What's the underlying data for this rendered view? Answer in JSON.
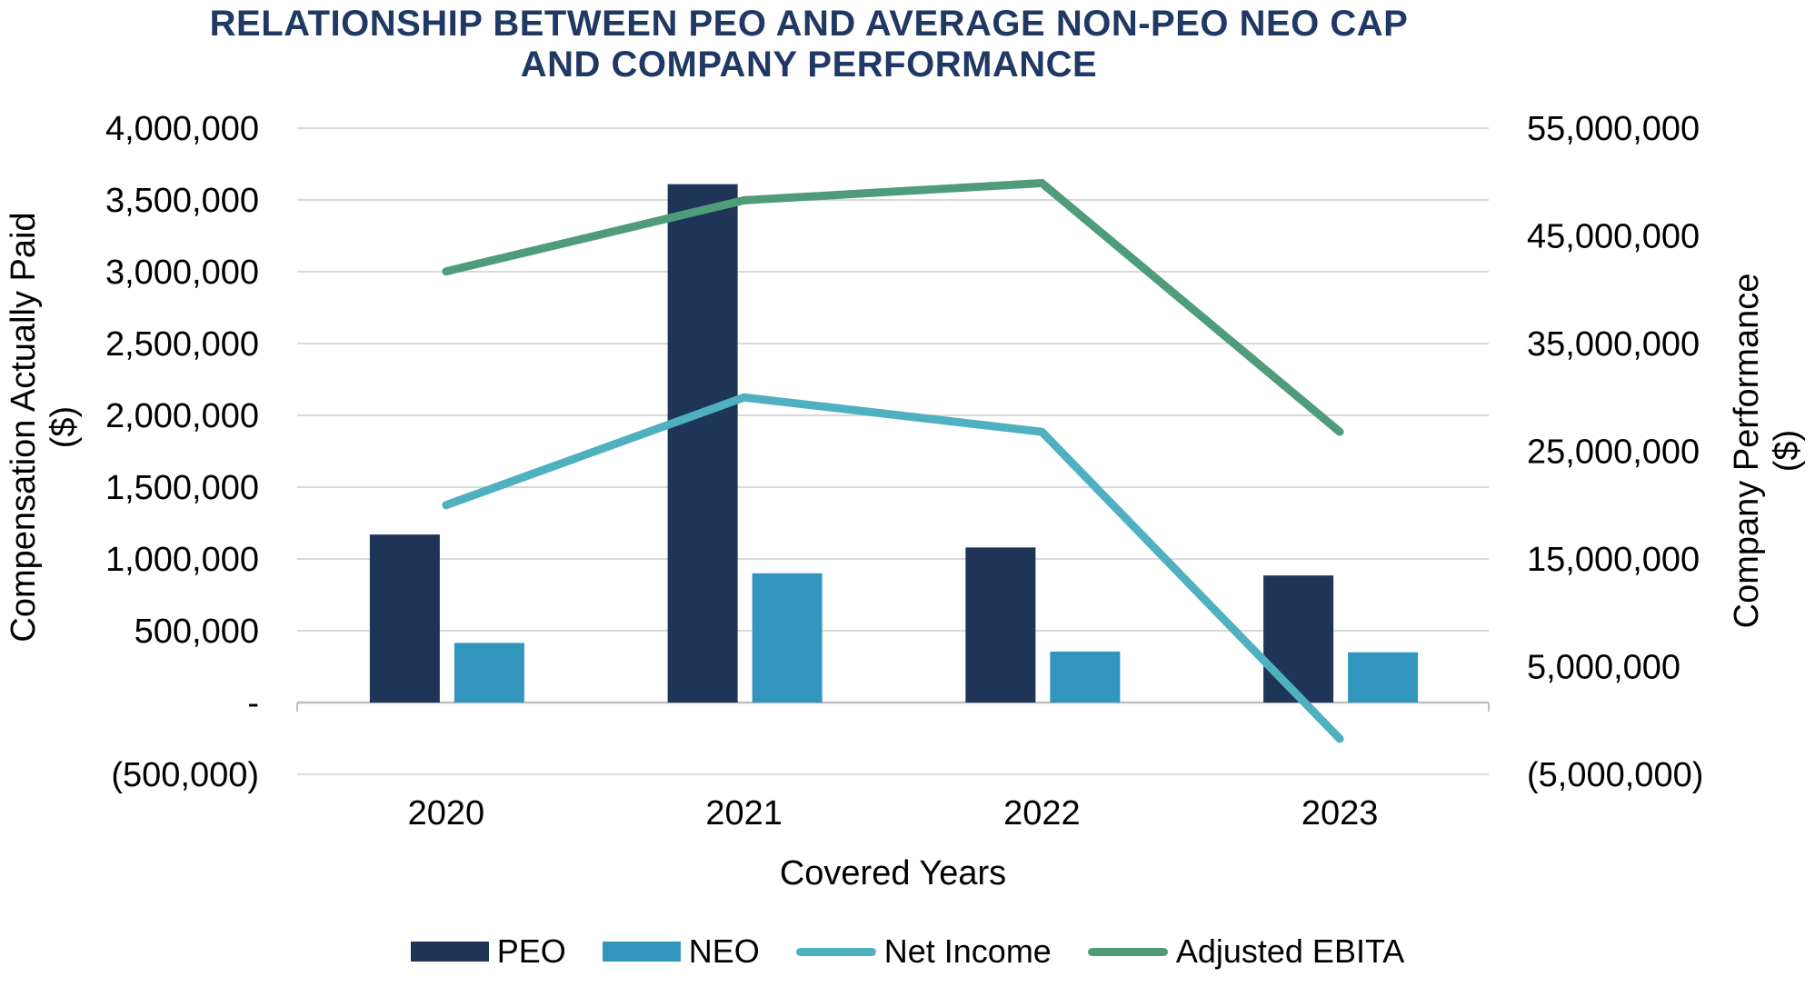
{
  "title": {
    "line1": "RELATIONSHIP BETWEEN PEO AND AVERAGE NON-PEO NEO CAP",
    "line2": "AND COMPANY PERFORMANCE"
  },
  "colors": {
    "title": "#1F3864",
    "gridline": "#D9D9D9",
    "zero_line": "#BFBFBF",
    "text": "#000000",
    "background": "#FFFFFF"
  },
  "axes": {
    "left_title_line1": "Compensation Actually Paid",
    "left_title_line2": "($)",
    "right_title_line1": "Company Performance",
    "right_title_line2": "($)",
    "x_title": "Covered Years"
  },
  "chart_data": {
    "type": "combo-bar-line",
    "categories": [
      "2020",
      "2021",
      "2022",
      "2023"
    ],
    "series": [
      {
        "name": "PEO",
        "type": "bar",
        "axis": "left",
        "color": "#1F3557",
        "values": [
          1170000,
          3610000,
          1080000,
          885000
        ]
      },
      {
        "name": "NEO",
        "type": "bar",
        "axis": "left",
        "color": "#3295BD",
        "values": [
          415000,
          900000,
          355000,
          350000
        ]
      },
      {
        "name": "Net Income",
        "type": "line",
        "axis": "right",
        "color": "#4FB0BF",
        "values": [
          20000000,
          30000000,
          26800000,
          -1700000
        ]
      },
      {
        "name": "Adjusted EBITA",
        "type": "line",
        "axis": "right",
        "color": "#4F9C7B",
        "values": [
          41700000,
          48300000,
          49900000,
          26800000
        ]
      }
    ],
    "title": "RELATIONSHIP BETWEEN PEO AND AVERAGE NON-PEO NEO CAP AND COMPANY PERFORMANCE",
    "xlabel": "Covered Years",
    "ylabel_left": "Compensation Actually Paid ($)",
    "ylabel_right": "Company Performance ($)",
    "y_left": {
      "min": -500000,
      "max": 4000000,
      "step": 500000
    },
    "y_right": {
      "min": -5000000,
      "max": 55000000,
      "step": 10000000
    },
    "grid": true,
    "legend_position": "bottom"
  }
}
